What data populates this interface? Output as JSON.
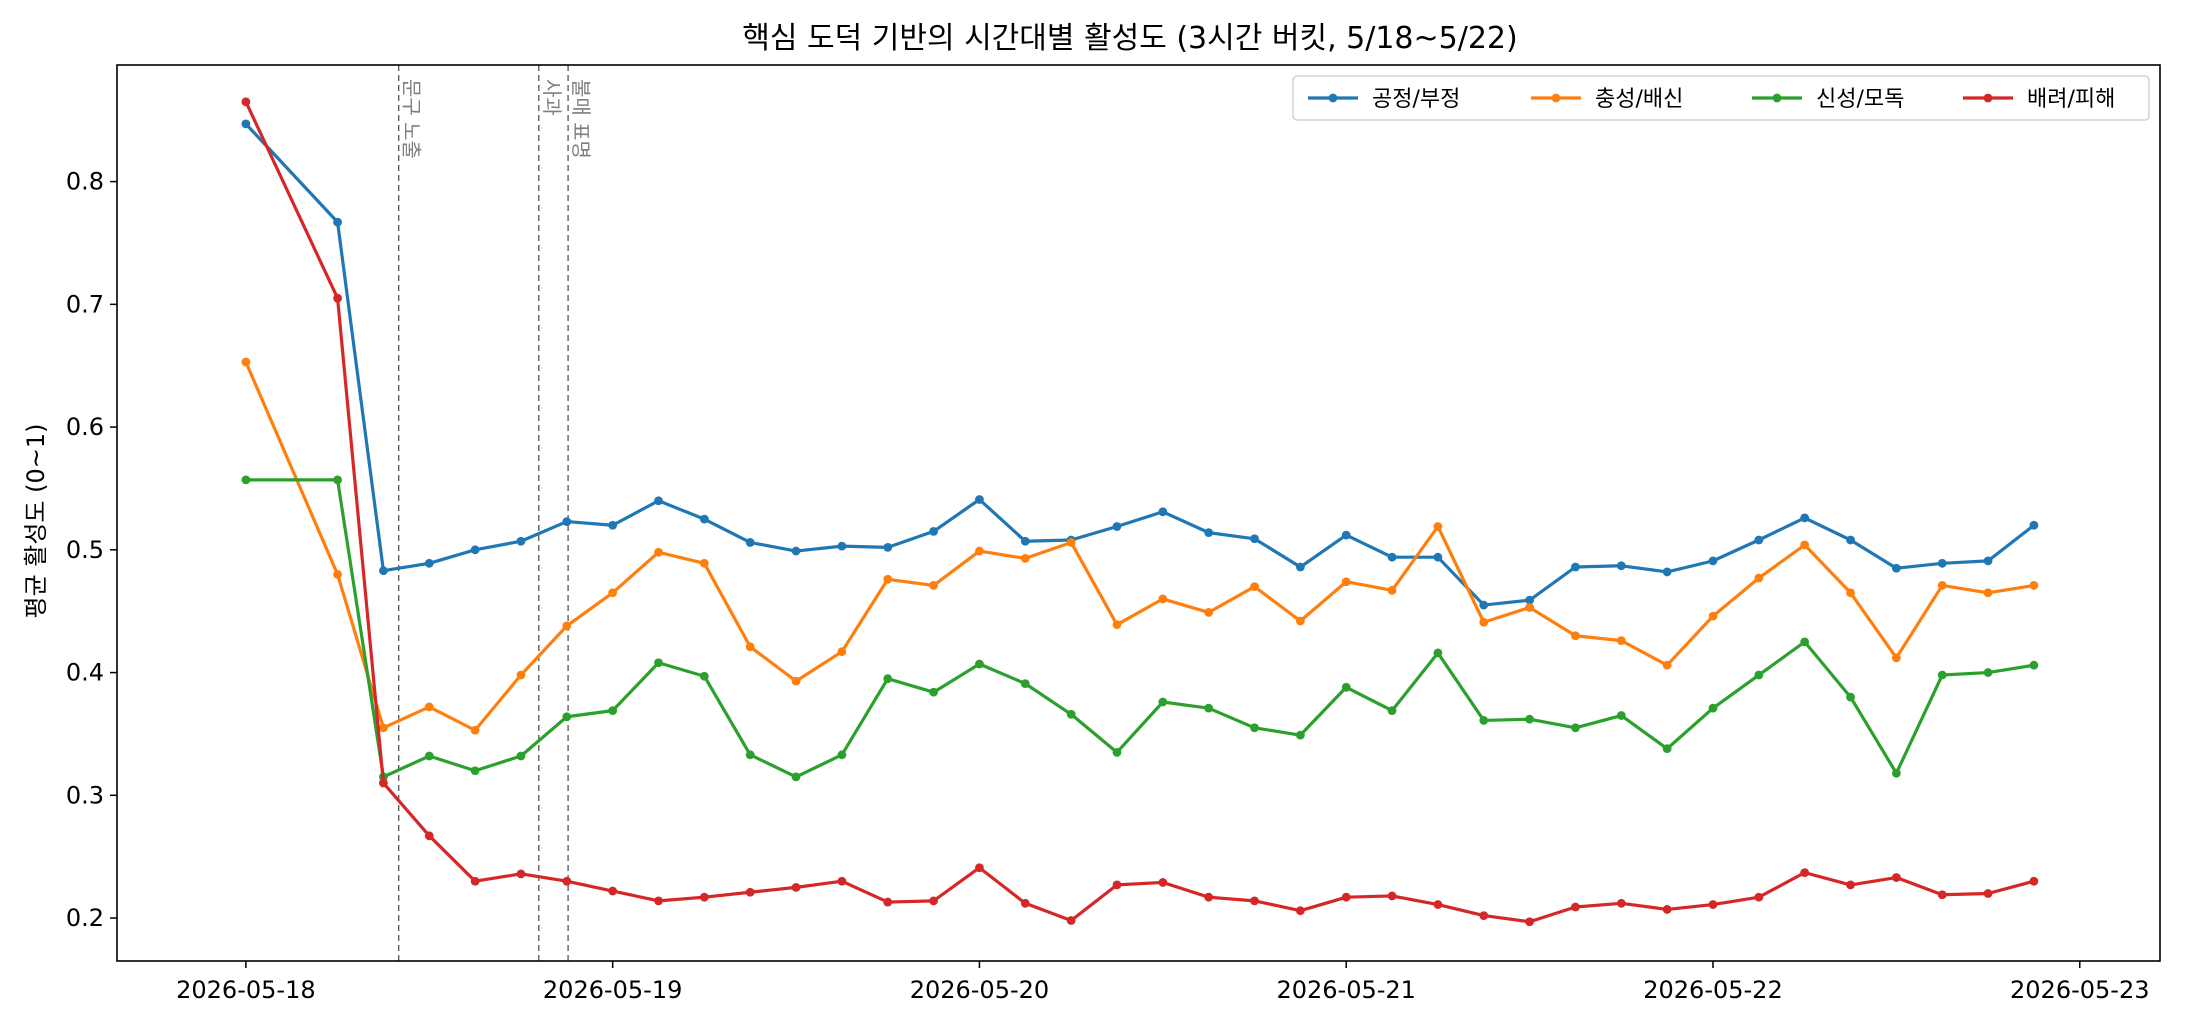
{
  "chart_data": {
    "type": "line",
    "title": "핵심 도덕 기반의 시간대별 활성도 (3시간 버킷, 5/18~5/22)",
    "xlabel": "",
    "ylabel": "평균 활성도 (0~1)",
    "x_ticks": [
      "2026-05-18",
      "2026-05-19",
      "2026-05-20",
      "2026-05-21",
      "2026-05-22",
      "2026-05-23"
    ],
    "y_ticks": [
      "0.2",
      "0.3",
      "0.4",
      "0.5",
      "0.6",
      "0.7",
      "0.8"
    ],
    "ylim": [
      0.165,
      0.895
    ],
    "xlim": [
      "2026-05-17 15:34",
      "2026-05-23 05:15"
    ],
    "grid": false,
    "legend_position": "top-right",
    "x": [
      "2026-05-18 00:00",
      "2026-05-18 06:00",
      "2026-05-18 09:00",
      "2026-05-18 12:00",
      "2026-05-18 15:00",
      "2026-05-18 18:00",
      "2026-05-18 21:00",
      "2026-05-19 00:00",
      "2026-05-19 03:00",
      "2026-05-19 06:00",
      "2026-05-19 09:00",
      "2026-05-19 12:00",
      "2026-05-19 15:00",
      "2026-05-19 18:00",
      "2026-05-19 21:00",
      "2026-05-20 00:00",
      "2026-05-20 03:00",
      "2026-05-20 06:00",
      "2026-05-20 09:00",
      "2026-05-20 12:00",
      "2026-05-20 15:00",
      "2026-05-20 18:00",
      "2026-05-20 21:00",
      "2026-05-21 00:00",
      "2026-05-21 03:00",
      "2026-05-21 06:00",
      "2026-05-21 09:00",
      "2026-05-21 12:00",
      "2026-05-21 15:00",
      "2026-05-21 18:00",
      "2026-05-21 21:00",
      "2026-05-22 00:00",
      "2026-05-22 03:00",
      "2026-05-22 06:00",
      "2026-05-22 09:00",
      "2026-05-22 12:00",
      "2026-05-22 15:00",
      "2026-05-22 18:00",
      "2026-05-22 21:00"
    ],
    "series": [
      {
        "name": "공정/부정",
        "color": "#1f77b4",
        "values": [
          0.847,
          0.767,
          0.483,
          0.489,
          0.5,
          0.507,
          0.523,
          0.52,
          0.54,
          0.525,
          0.506,
          0.499,
          0.503,
          0.502,
          0.515,
          0.541,
          0.507,
          0.508,
          0.519,
          0.531,
          0.514,
          0.509,
          0.486,
          0.512,
          0.494,
          0.494,
          0.455,
          0.459,
          0.486,
          0.487,
          0.482,
          0.491,
          0.508,
          0.526,
          0.508,
          0.485,
          0.489,
          0.491,
          0.52
        ]
      },
      {
        "name": "충성/배신",
        "color": "#ff7f0e",
        "values": [
          0.653,
          0.48,
          0.355,
          0.372,
          0.353,
          0.398,
          0.438,
          0.465,
          0.498,
          0.489,
          0.421,
          0.393,
          0.417,
          0.476,
          0.471,
          0.499,
          0.493,
          0.506,
          0.439,
          0.46,
          0.449,
          0.47,
          0.442,
          0.474,
          0.467,
          0.519,
          0.441,
          0.453,
          0.43,
          0.426,
          0.406,
          0.446,
          0.477,
          0.504,
          0.465,
          0.412,
          0.471,
          0.465,
          0.471
        ]
      },
      {
        "name": "신성/모독",
        "color": "#2ca02c",
        "values": [
          0.557,
          0.557,
          0.315,
          0.332,
          0.32,
          0.332,
          0.364,
          0.369,
          0.408,
          0.397,
          0.333,
          0.315,
          0.333,
          0.395,
          0.384,
          0.407,
          0.391,
          0.366,
          0.335,
          0.376,
          0.371,
          0.355,
          0.349,
          0.388,
          0.369,
          0.416,
          0.361,
          0.362,
          0.355,
          0.365,
          0.338,
          0.371,
          0.398,
          0.425,
          0.38,
          0.318,
          0.398,
          0.4,
          0.406
        ]
      },
      {
        "name": "배려/피해",
        "color": "#d62728",
        "values": [
          0.865,
          0.705,
          0.31,
          0.267,
          0.23,
          0.236,
          0.23,
          0.222,
          0.214,
          0.217,
          0.221,
          0.225,
          0.23,
          0.213,
          0.214,
          0.241,
          0.212,
          0.198,
          0.227,
          0.229,
          0.217,
          0.214,
          0.206,
          0.217,
          0.218,
          0.211,
          0.202,
          0.197,
          0.209,
          0.212,
          0.207,
          0.211,
          0.217,
          0.237,
          0.227,
          0.233,
          0.219,
          0.22,
          0.23
        ]
      }
    ],
    "annotations": [
      {
        "x": "2026-05-18 10:00",
        "text": "문구 노출",
        "style": "vertical dashed line, gray"
      },
      {
        "x": "2026-05-18 19:10",
        "text": "사과",
        "style": "vertical dashed line, gray"
      },
      {
        "x": "2026-05-18 21:05",
        "text": "불매 표명",
        "style": "vertical dashed line, gray"
      }
    ]
  }
}
